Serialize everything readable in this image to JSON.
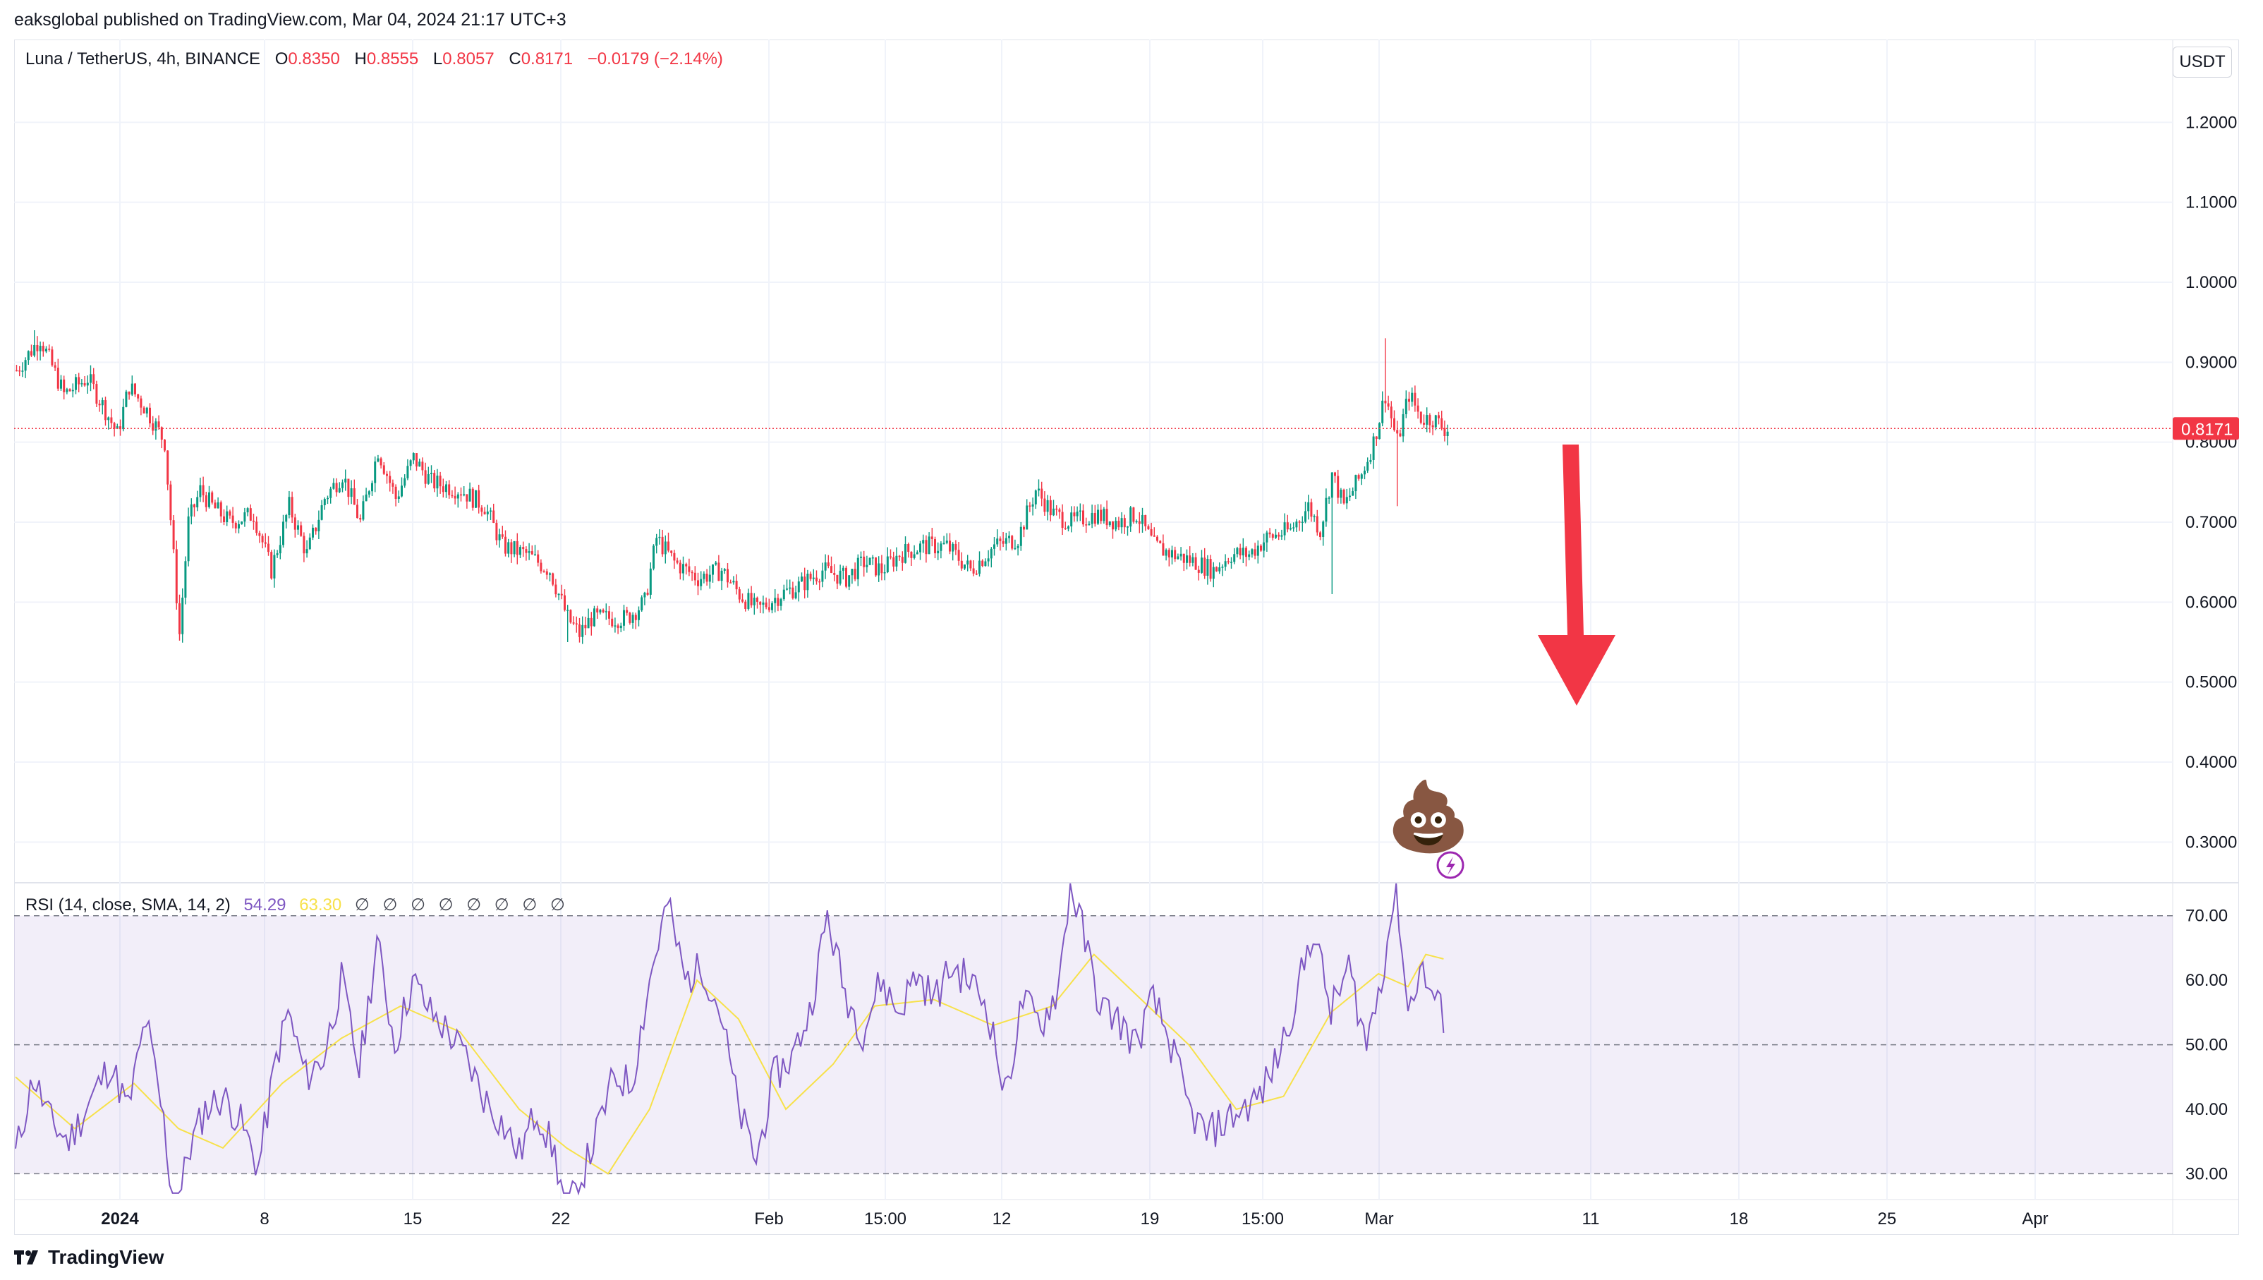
{
  "header": {
    "published_text": "eaksglobal published on TradingView.com, Mar 04, 2024 21:17 UTC+3"
  },
  "legend": {
    "symbol": "Luna / TetherUS, 4h, BINANCE",
    "open_label": "O",
    "open_value": "0.8350",
    "high_label": "H",
    "high_value": "0.8555",
    "low_label": "L",
    "low_value": "0.8057",
    "close_label": "C",
    "close_value": "0.8171",
    "change": "−0.0179 (−2.14%)"
  },
  "currency_button": "USDT",
  "rsi_legend": {
    "title": "RSI (14, close, SMA, 14, 2)",
    "rsi_value": "54.29",
    "sma_value": "63.30",
    "blanks": "∅ ∅ ∅ ∅ ∅ ∅ ∅ ∅"
  },
  "footer": {
    "brand": "TradingView"
  },
  "colors": {
    "up": "#089981",
    "down": "#f23645",
    "rsi_line": "#7e57c2",
    "rsi_sma": "#f7e14a",
    "rsi_band": "#7e57c2",
    "arrow": "#f23645",
    "price_line": "#f23645"
  },
  "annotations": {
    "arrow": "down-arrow",
    "emoji": "💩",
    "alert_icon": "lightning-icon"
  },
  "chart_data": [
    {
      "type": "candlestick",
      "price_axis_ticks": [
        "1.2000",
        "1.1000",
        "1.0000",
        "0.9000",
        "0.8000",
        "0.7000",
        "0.6000",
        "0.5000",
        "0.4000",
        "0.3000"
      ],
      "price_tick_values": [
        1.2,
        1.1,
        1.0,
        0.9,
        0.8,
        0.7,
        0.6,
        0.5,
        0.4,
        0.3
      ],
      "ylim": [
        0.25,
        1.3
      ],
      "last_price_label": "0.8171",
      "last_price": 0.8171,
      "x_axis_ticks": [
        "2024",
        "8",
        "15",
        "22",
        "Feb",
        "15:00",
        "12",
        "19",
        "15:00",
        "Mar",
        "11",
        "18",
        "25",
        "Apr"
      ],
      "close_path": [
        [
          0,
          0.89
        ],
        [
          8,
          0.93
        ],
        [
          16,
          0.86
        ],
        [
          24,
          0.88
        ],
        [
          30,
          0.84
        ],
        [
          34,
          0.81
        ],
        [
          38,
          0.87
        ],
        [
          44,
          0.84
        ],
        [
          50,
          0.8
        ],
        [
          55,
          0.56
        ],
        [
          58,
          0.7
        ],
        [
          62,
          0.74
        ],
        [
          66,
          0.72
        ],
        [
          72,
          0.7
        ],
        [
          80,
          0.71
        ],
        [
          86,
          0.64
        ],
        [
          92,
          0.72
        ],
        [
          98,
          0.66
        ],
        [
          104,
          0.73
        ],
        [
          110,
          0.76
        ],
        [
          116,
          0.7
        ],
        [
          122,
          0.79
        ],
        [
          128,
          0.73
        ],
        [
          134,
          0.78
        ],
        [
          140,
          0.75
        ],
        [
          150,
          0.74
        ],
        [
          158,
          0.72
        ],
        [
          164,
          0.67
        ],
        [
          172,
          0.66
        ],
        [
          180,
          0.64
        ],
        [
          186,
          0.58
        ],
        [
          190,
          0.56
        ],
        [
          194,
          0.58
        ],
        [
          200,
          0.58
        ],
        [
          206,
          0.58
        ],
        [
          212,
          0.6
        ],
        [
          216,
          0.68
        ],
        [
          222,
          0.65
        ],
        [
          230,
          0.63
        ],
        [
          238,
          0.64
        ],
        [
          244,
          0.61
        ],
        [
          250,
          0.59
        ],
        [
          258,
          0.61
        ],
        [
          264,
          0.62
        ],
        [
          272,
          0.64
        ],
        [
          280,
          0.63
        ],
        [
          286,
          0.65
        ],
        [
          292,
          0.64
        ],
        [
          298,
          0.66
        ],
        [
          306,
          0.67
        ],
        [
          314,
          0.67
        ],
        [
          322,
          0.64
        ],
        [
          330,
          0.67
        ],
        [
          338,
          0.68
        ],
        [
          344,
          0.74
        ],
        [
          350,
          0.71
        ],
        [
          356,
          0.7
        ],
        [
          364,
          0.71
        ],
        [
          372,
          0.7
        ],
        [
          378,
          0.71
        ],
        [
          384,
          0.67
        ],
        [
          390,
          0.66
        ],
        [
          398,
          0.65
        ],
        [
          404,
          0.64
        ],
        [
          410,
          0.66
        ],
        [
          416,
          0.66
        ],
        [
          422,
          0.68
        ],
        [
          430,
          0.69
        ],
        [
          436,
          0.72
        ],
        [
          440,
          0.69
        ],
        [
          444,
          0.76
        ],
        [
          448,
          0.72
        ],
        [
          454,
          0.76
        ],
        [
          458,
          0.8
        ],
        [
          462,
          0.86
        ],
        [
          466,
          0.8
        ],
        [
          470,
          0.86
        ],
        [
          474,
          0.83
        ],
        [
          478,
          0.83
        ],
        [
          482,
          0.8171
        ]
      ],
      "n_bars": 484,
      "high_low_extras": [
        [
          55,
          0.56
        ],
        [
          186,
          0.55
        ],
        [
          462,
          0.93
        ],
        [
          466,
          0.72
        ],
        [
          444,
          0.61
        ],
        [
          6,
          0.94
        ]
      ]
    },
    {
      "type": "line",
      "name": "RSI (14, close, SMA, 14, 2)",
      "y_axis_ticks": [
        "70.00",
        "60.00",
        "50.00",
        "40.00",
        "30.00"
      ],
      "y_tick_values": [
        70,
        60,
        50,
        40,
        30
      ],
      "ylim": [
        26,
        75
      ],
      "bands": [
        70,
        50,
        30
      ],
      "rsi_path": [
        [
          0,
          33
        ],
        [
          6,
          45
        ],
        [
          12,
          38
        ],
        [
          18,
          35
        ],
        [
          26,
          42
        ],
        [
          32,
          47
        ],
        [
          38,
          40
        ],
        [
          44,
          54
        ],
        [
          50,
          38
        ],
        [
          54,
          22
        ],
        [
          58,
          33
        ],
        [
          64,
          40
        ],
        [
          70,
          42
        ],
        [
          76,
          38
        ],
        [
          82,
          31
        ],
        [
          88,
          48
        ],
        [
          92,
          55
        ],
        [
          98,
          45
        ],
        [
          104,
          48
        ],
        [
          110,
          60
        ],
        [
          116,
          46
        ],
        [
          122,
          66
        ],
        [
          128,
          50
        ],
        [
          134,
          60
        ],
        [
          140,
          55
        ],
        [
          146,
          52
        ],
        [
          152,
          48
        ],
        [
          158,
          42
        ],
        [
          164,
          38
        ],
        [
          170,
          33
        ],
        [
          176,
          40
        ],
        [
          182,
          33
        ],
        [
          186,
          24
        ],
        [
          190,
          28
        ],
        [
          196,
          36
        ],
        [
          202,
          45
        ],
        [
          208,
          44
        ],
        [
          214,
          60
        ],
        [
          220,
          72
        ],
        [
          226,
          60
        ],
        [
          232,
          62
        ],
        [
          238,
          55
        ],
        [
          244,
          40
        ],
        [
          250,
          32
        ],
        [
          256,
          45
        ],
        [
          262,
          48
        ],
        [
          268,
          55
        ],
        [
          274,
          70
        ],
        [
          280,
          58
        ],
        [
          286,
          52
        ],
        [
          292,
          60
        ],
        [
          298,
          55
        ],
        [
          304,
          61
        ],
        [
          310,
          57
        ],
        [
          316,
          62
        ],
        [
          322,
          60
        ],
        [
          328,
          56
        ],
        [
          334,
          42
        ],
        [
          340,
          57
        ],
        [
          346,
          53
        ],
        [
          352,
          59
        ],
        [
          356,
          75
        ],
        [
          360,
          68
        ],
        [
          366,
          56
        ],
        [
          372,
          54
        ],
        [
          378,
          50
        ],
        [
          384,
          57
        ],
        [
          390,
          50
        ],
        [
          396,
          40
        ],
        [
          402,
          36
        ],
        [
          408,
          38
        ],
        [
          414,
          40
        ],
        [
          420,
          42
        ],
        [
          426,
          48
        ],
        [
          432,
          57
        ],
        [
          438,
          68
        ],
        [
          444,
          55
        ],
        [
          450,
          62
        ],
        [
          456,
          50
        ],
        [
          462,
          63
        ],
        [
          466,
          75
        ],
        [
          470,
          55
        ],
        [
          474,
          62
        ],
        [
          478,
          58
        ],
        [
          482,
          54.29
        ]
      ],
      "sma_path": [
        [
          0,
          45
        ],
        [
          20,
          37
        ],
        [
          40,
          44
        ],
        [
          55,
          37
        ],
        [
          70,
          34
        ],
        [
          90,
          44
        ],
        [
          110,
          51
        ],
        [
          130,
          56
        ],
        [
          150,
          52
        ],
        [
          170,
          40
        ],
        [
          186,
          34
        ],
        [
          200,
          30
        ],
        [
          214,
          40
        ],
        [
          230,
          60
        ],
        [
          244,
          54
        ],
        [
          260,
          40
        ],
        [
          276,
          47
        ],
        [
          290,
          56
        ],
        [
          310,
          57
        ],
        [
          330,
          53
        ],
        [
          350,
          56
        ],
        [
          364,
          64
        ],
        [
          380,
          57
        ],
        [
          396,
          50
        ],
        [
          412,
          40
        ],
        [
          428,
          42
        ],
        [
          444,
          55
        ],
        [
          460,
          61
        ],
        [
          470,
          59
        ],
        [
          476,
          64
        ],
        [
          482,
          63.3
        ]
      ]
    }
  ]
}
